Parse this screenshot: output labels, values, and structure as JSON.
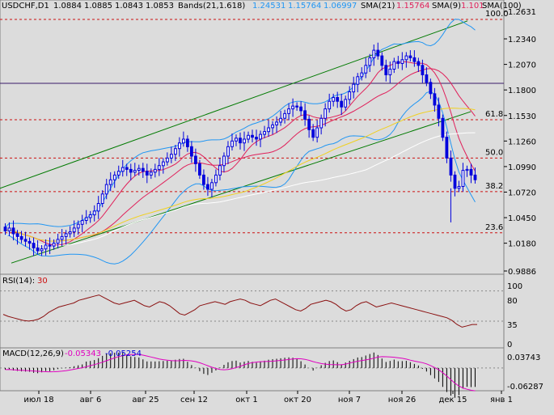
{
  "header": {
    "symbol": "USDCHF,D1",
    "ohlc": [
      "1.0884",
      "1.0885",
      "1.0843",
      "1.0853"
    ],
    "bands_label": "Bands(21,1.618)",
    "bands_values": [
      "1.24531",
      "1.15764",
      "1.06997"
    ],
    "sma21_label": "SMA(21)",
    "sma21_value": "1.15764",
    "sma9_label": "SMA(9)",
    "sma9_value": "1.101",
    "sma100_label": "SMA(100)"
  },
  "price_scale": [
    "1.2631",
    "1.2340",
    "1.2070",
    "1.1800",
    "1.1530",
    "1.1260",
    "1.0990",
    "1.0720",
    "1.0450",
    "1.0180",
    "0.9886"
  ],
  "fib_levels": [
    {
      "label": "100.0",
      "price": 1.2545
    },
    {
      "label": "61.8",
      "price": 1.1485
    },
    {
      "label": "50.0",
      "price": 1.108
    },
    {
      "label": "38.2",
      "price": 1.0725
    },
    {
      "label": "23.6",
      "price": 1.029
    }
  ],
  "rsi": {
    "label": "RSI(14):",
    "value": "30",
    "scale": [
      "100",
      "80",
      "35",
      "0"
    ]
  },
  "macd": {
    "label": "MACD(12,26,9)",
    "value1": "-0.05343",
    "value2": "-0.05254",
    "scale": [
      "0.03743",
      "-0.06287"
    ]
  },
  "time_axis": [
    "июл 18",
    "авг 6",
    "авг 25",
    "сен 12",
    "окт 1",
    "окт 20",
    "ноя 7",
    "ноя 26",
    "дек 15",
    "янв 1"
  ],
  "colors": {
    "background": "#dcdcdc",
    "candle": "#0000dd",
    "bands": "#2196f3",
    "sma21": "#e0205a",
    "sma9": "#e0205a",
    "sma100": "#f0d020",
    "channel": "#007a00",
    "fib": "#cc1010",
    "rsi": "#8a1010",
    "macd_hist": "#000000",
    "macd_signal": "#e000c0"
  },
  "chart_data": {
    "type": "candlestick",
    "symbol": "USDCHF",
    "timeframe": "D1",
    "ylim": [
      0.9886,
      1.2631
    ],
    "candles_close": [
      1.031,
      1.034,
      1.028,
      1.025,
      1.022,
      1.02,
      1.018,
      1.013,
      1.01,
      1.012,
      1.016,
      1.015,
      1.018,
      1.022,
      1.025,
      1.028,
      1.03,
      1.034,
      1.038,
      1.042,
      1.045,
      1.048,
      1.052,
      1.06,
      1.07,
      1.08,
      1.085,
      1.09,
      1.094,
      1.098,
      1.096,
      1.093,
      1.095,
      1.097,
      1.094,
      1.09,
      1.093,
      1.096,
      1.1,
      1.104,
      1.108,
      1.112,
      1.118,
      1.124,
      1.128,
      1.12,
      1.11,
      1.102,
      1.09,
      1.08,
      1.075,
      1.082,
      1.09,
      1.1,
      1.11,
      1.12,
      1.126,
      1.129,
      1.124,
      1.128,
      1.132,
      1.13,
      1.128,
      1.133,
      1.136,
      1.14,
      1.143,
      1.146,
      1.15,
      1.155,
      1.16,
      1.163,
      1.162,
      1.158,
      1.149,
      1.138,
      1.13,
      1.14,
      1.15,
      1.16,
      1.168,
      1.172,
      1.168,
      1.162,
      1.17,
      1.178,
      1.186,
      1.194,
      1.198,
      1.206,
      1.214,
      1.222,
      1.216,
      1.206,
      1.196,
      1.202,
      1.21,
      1.208,
      1.212,
      1.216,
      1.214,
      1.21,
      1.206,
      1.196,
      1.188,
      1.176,
      1.164,
      1.15,
      1.13,
      1.108,
      1.09,
      1.076,
      1.078,
      1.095,
      1.096,
      1.09,
      1.085
    ],
    "fibonacci": [
      {
        "level": "100.0",
        "price": 1.2545
      },
      {
        "level": "61.8",
        "price": 1.1485
      },
      {
        "level": "50.0",
        "price": 1.108
      },
      {
        "level": "38.2",
        "price": 1.0725
      },
      {
        "level": "23.6",
        "price": 1.029
      }
    ],
    "indicators": [
      "Bands(21,1.618)",
      "SMA(21)",
      "SMA(9)",
      "SMA(100)",
      "RSI(14)",
      "MACD(12,26,9)"
    ],
    "rsi_value": 30,
    "rsi_range": [
      0,
      100
    ],
    "rsi_series": [
      45,
      42,
      40,
      38,
      36,
      35,
      36,
      38,
      42,
      48,
      52,
      56,
      58,
      60,
      62,
      66,
      68,
      70,
      72,
      74,
      70,
      66,
      62,
      60,
      62,
      64,
      66,
      62,
      58,
      56,
      60,
      64,
      62,
      58,
      52,
      46,
      44,
      48,
      52,
      58,
      60,
      62,
      64,
      62,
      60,
      64,
      66,
      68,
      66,
      62,
      60,
      58,
      62,
      66,
      68,
      64,
      60,
      56,
      52,
      50,
      54,
      60,
      62,
      64,
      66,
      64,
      60,
      54,
      50,
      52,
      58,
      62,
      64,
      60,
      56,
      58,
      60,
      62,
      60,
      58,
      56,
      54,
      52,
      50,
      48,
      46,
      44,
      42,
      40,
      36,
      30,
      26,
      28,
      30,
      30
    ],
    "macd_range": [
      -0.06287,
      0.03743
    ],
    "macd_values": [
      -0.05343,
      -0.05254
    ],
    "x_ticks": [
      "июл 18",
      "авг 6",
      "авг 25",
      "сен 12",
      "окт 1",
      "окт 20",
      "ноя 7",
      "ноя 26",
      "дек 15",
      "янв 1"
    ]
  }
}
